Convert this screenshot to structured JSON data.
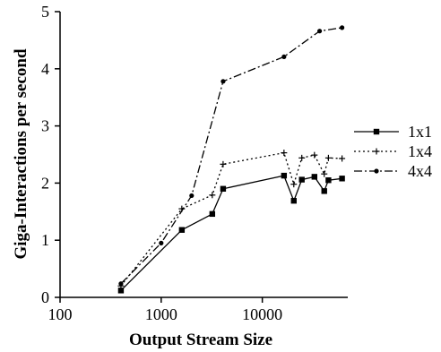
{
  "chart_data": {
    "type": "line",
    "xlabel": "Output Stream Size",
    "ylabel": "Giga-Interactions per second",
    "x_scale": "log",
    "xlim": [
      100,
      70000
    ],
    "ylim": [
      0,
      5
    ],
    "x_ticks": [
      {
        "value": 100,
        "label": "100"
      },
      {
        "value": 1000,
        "label": "1000"
      },
      {
        "value": 10000,
        "label": "10000"
      }
    ],
    "y_ticks": [
      {
        "value": 0,
        "label": "0"
      },
      {
        "value": 1,
        "label": "1"
      },
      {
        "value": 2,
        "label": "2"
      },
      {
        "value": 3,
        "label": "3"
      },
      {
        "value": 4,
        "label": "4"
      },
      {
        "value": 5,
        "label": "5"
      }
    ],
    "grid": false,
    "legend_position": "right",
    "series": [
      {
        "name": "1x1",
        "line_style": "solid",
        "marker": "square",
        "color": "#000000",
        "x": [
          400,
          1600,
          3200,
          4096,
          16384,
          20480,
          24576,
          32768,
          40960,
          45056,
          61440
        ],
        "y": [
          0.12,
          1.18,
          1.46,
          1.9,
          2.13,
          1.69,
          2.06,
          2.11,
          1.86,
          2.05,
          2.08
        ]
      },
      {
        "name": "1x4",
        "line_style": "dotted",
        "marker": "plus",
        "color": "#000000",
        "x": [
          400,
          1600,
          3200,
          4096,
          16384,
          20480,
          24576,
          32768,
          40960,
          45056,
          61440
        ],
        "y": [
          0.2,
          1.55,
          1.79,
          2.33,
          2.53,
          1.98,
          2.44,
          2.49,
          2.16,
          2.44,
          2.43
        ]
      },
      {
        "name": "4x4",
        "line_style": "dashdot",
        "marker": "dot",
        "color": "#000000",
        "x": [
          400,
          1000,
          2000,
          4096,
          16384,
          36864,
          61440
        ],
        "y": [
          0.24,
          0.95,
          1.78,
          3.78,
          4.21,
          4.66,
          4.72
        ]
      }
    ]
  }
}
